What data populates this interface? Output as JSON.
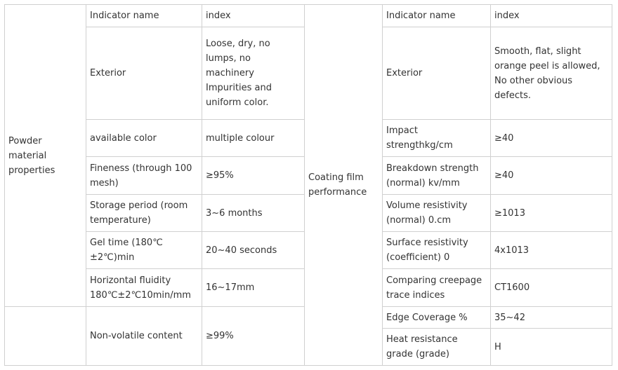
{
  "left": {
    "group_label": "Powder material properties",
    "header": {
      "name": "Indicator name",
      "value": "index"
    },
    "rows": [
      {
        "name": "Exterior",
        "value": "Loose, dry, no lumps, no machinery Impurities and uniform color."
      },
      {
        "name": "available color",
        "value": "multiple colour"
      },
      {
        "name": "Fineness (through 100 mesh)",
        "value": "≥95%"
      },
      {
        "name": "Storage period (room temperature)",
        "value": "3~6 months"
      },
      {
        "name": "Gel time (180℃ ±2℃)min",
        "value": "20~40 seconds"
      },
      {
        "name": "Horizontal fluidity 180℃±2℃10min/mm",
        "value": "16~17mm"
      }
    ],
    "extra_row": {
      "name": "Non-volatile content",
      "value": "≥99%"
    }
  },
  "right": {
    "group_label": "Coating film performance",
    "header": {
      "name": "Indicator name",
      "value": "index"
    },
    "rows": [
      {
        "name": "Exterior",
        "value": "Smooth, flat, slight orange peel is allowed, No other obvious defects."
      },
      {
        "name": "Impact strengthkg/cm",
        "value": "≥40"
      },
      {
        "name": "Breakdown strength (normal) kv/mm",
        "value": "≥40"
      },
      {
        "name": "Volume resistivity (normal) 0.cm",
        "value": "≥1013"
      },
      {
        "name": "Surface resistivity (coefficient) 0",
        "value": "4x1013"
      },
      {
        "name": "Comparing creepage trace indices",
        "value": "CT1600"
      },
      {
        "name": "Edge Coverage %",
        "value": "35~42"
      },
      {
        "name": "Heat resistance grade (grade)",
        "value": "H"
      }
    ]
  }
}
